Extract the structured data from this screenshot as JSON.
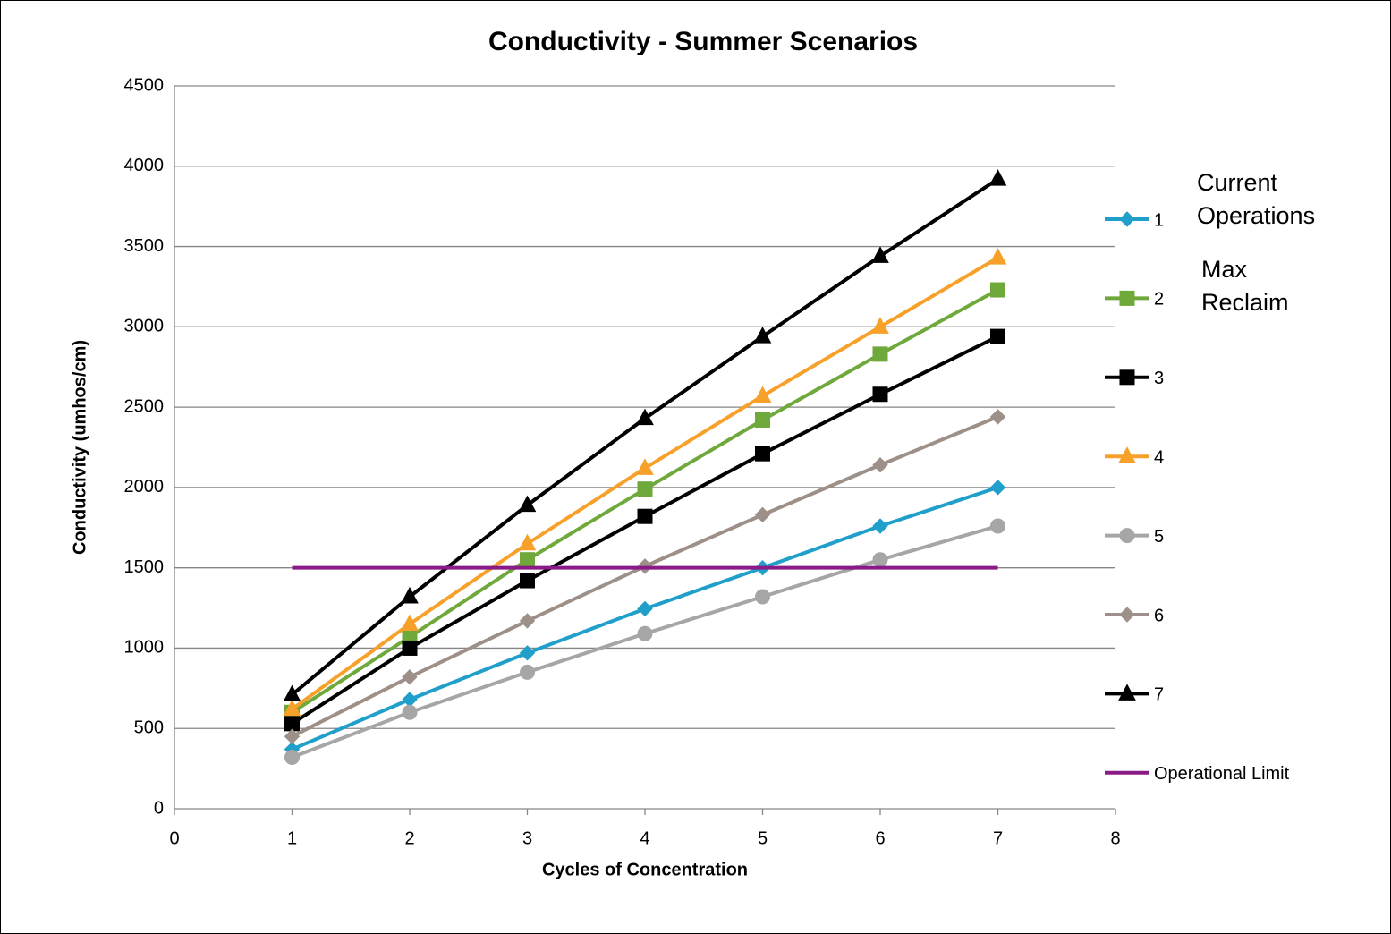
{
  "chart_data": {
    "type": "line",
    "title": "Conductivity - Summer Scenarios",
    "x_label": "Cycles of Concentration",
    "y_label": "Conductivity (umhos/cm)",
    "x": [
      1,
      2,
      3,
      4,
      5,
      6,
      7
    ],
    "xlim": [
      0,
      8
    ],
    "xticks": [
      0,
      1,
      2,
      3,
      4,
      5,
      6,
      7,
      8
    ],
    "ylim": [
      0,
      4500
    ],
    "yticks": [
      0,
      500,
      1000,
      1500,
      2000,
      2500,
      3000,
      3500,
      4000,
      4500
    ],
    "grid": true,
    "legend": "right",
    "annotations": [
      "Current Operations",
      "Max Reclaim"
    ],
    "series": [
      {
        "name": "1",
        "color": "#1f9fc9",
        "marker": "diamond",
        "values": [
          370,
          680,
          970,
          1245,
          1500,
          1760,
          2000
        ]
      },
      {
        "name": "2",
        "color": "#6fa83b",
        "marker": "square",
        "values": [
          600,
          1070,
          1550,
          1990,
          2420,
          2830,
          3230
        ]
      },
      {
        "name": "3",
        "color": "#000000",
        "marker": "square",
        "values": [
          530,
          1000,
          1420,
          1820,
          2210,
          2580,
          2940
        ]
      },
      {
        "name": "4",
        "color": "#f7a12b",
        "marker": "triangle",
        "values": [
          620,
          1150,
          1650,
          2120,
          2570,
          3000,
          3430
        ]
      },
      {
        "name": "5",
        "color": "#a6a6a6",
        "marker": "circle",
        "values": [
          320,
          600,
          850,
          1090,
          1320,
          1550,
          1760
        ]
      },
      {
        "name": "6",
        "color": "#9c9088",
        "marker": "diamond",
        "values": [
          450,
          820,
          1170,
          1510,
          1830,
          2140,
          2440
        ]
      },
      {
        "name": "7",
        "color": "#000000",
        "marker": "triangle",
        "values": [
          710,
          1320,
          1890,
          2430,
          2940,
          3440,
          3920
        ]
      },
      {
        "name": "Operational Limit",
        "color": "#8b1a89",
        "marker": "none",
        "values": [
          1500,
          1500,
          1500,
          1500,
          1500,
          1500,
          1500
        ]
      }
    ]
  }
}
